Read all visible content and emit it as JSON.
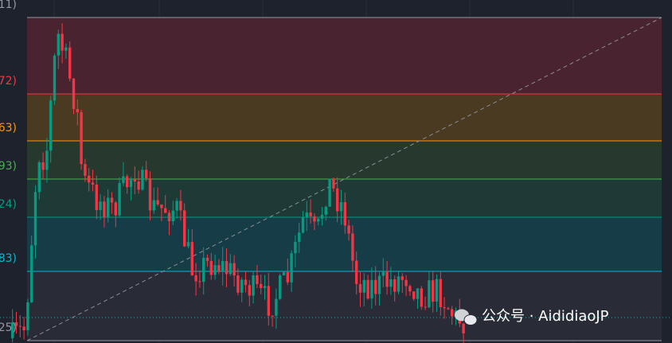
{
  "levels": [
    {
      "label": "11)",
      "color": "#9598a1"
    },
    {
      "label": "72)",
      "color": "#f23645"
    },
    {
      "label": "63)",
      "color": "#ff9800"
    },
    {
      "label": "93)",
      "color": "#4caf50"
    },
    {
      "label": "24)",
      "color": "#089981"
    },
    {
      "label": "83)",
      "color": "#00bcd4"
    },
    {
      "label": "25)",
      "color": "#9598a1"
    }
  ],
  "watermark": "公众号 · AididiaoJP"
}
